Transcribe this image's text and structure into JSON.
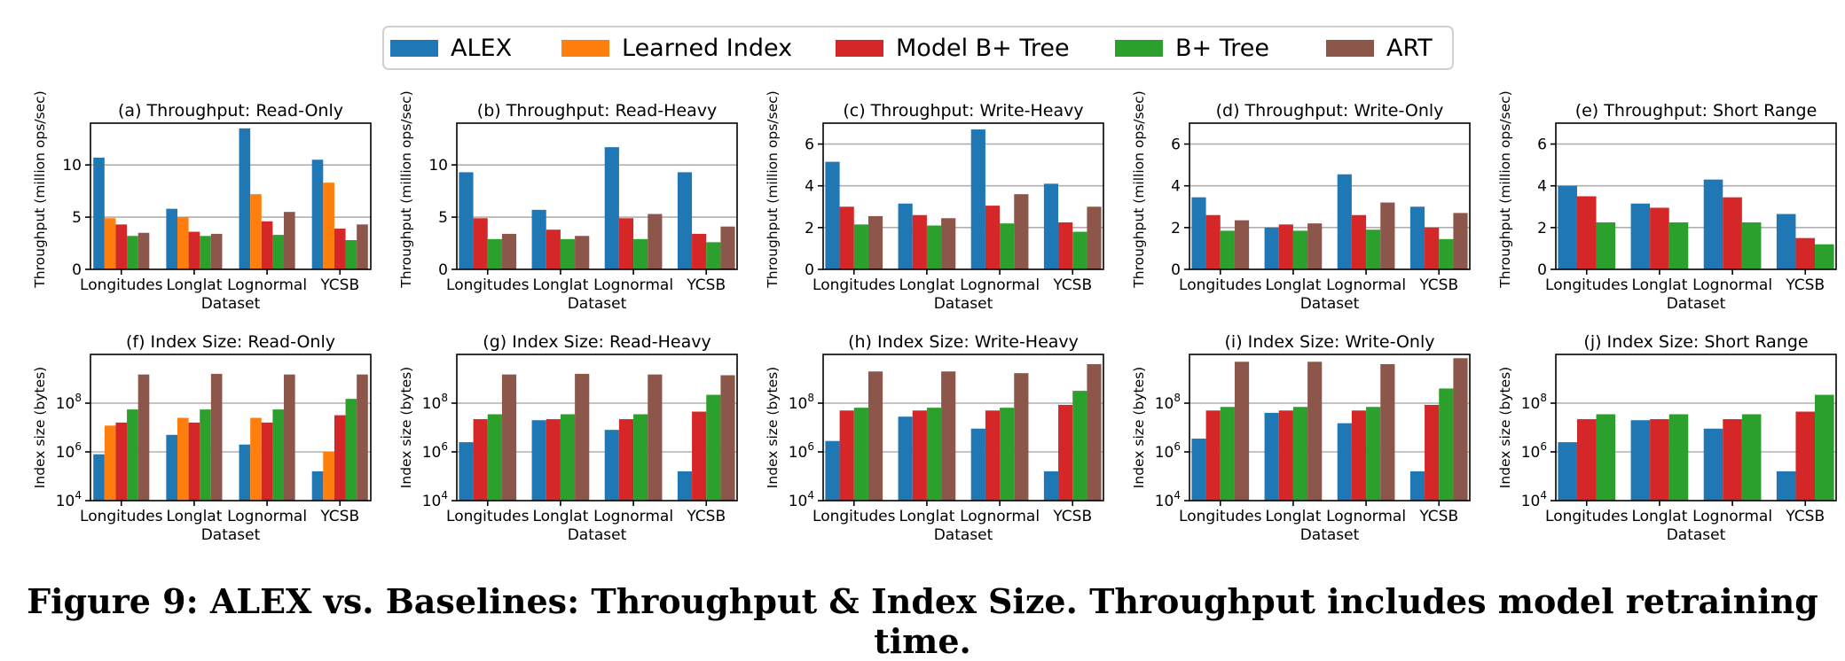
{
  "legend": {
    "items": [
      {
        "label": "ALEX",
        "color": "#1f77b4"
      },
      {
        "label": "Learned Index",
        "color": "#ff7f0e"
      },
      {
        "label": "Model B+ Tree",
        "color": "#d62728"
      },
      {
        "label": "B+ Tree",
        "color": "#2ca02c"
      },
      {
        "label": "ART",
        "color": "#8c564b"
      }
    ]
  },
  "caption": "Figure 9: ALEX vs. Baselines: Throughput & Index Size. Throughput includes model retraining time.",
  "chart_data": [
    {
      "type": "bar",
      "title": "(a) Throughput: Read-Only",
      "xlabel": "Dataset",
      "ylabel": "Throughput (million ops/sec)",
      "categories": [
        "Longitudes",
        "Longlat",
        "Lognormal",
        "YCSB"
      ],
      "ylim": [
        0,
        14
      ],
      "yticks": [
        0,
        5,
        10
      ],
      "yticklabels": [
        "0",
        "5",
        "10"
      ],
      "grid": true,
      "log": false,
      "series": [
        {
          "name": "ALEX",
          "values": [
            10.7,
            5.8,
            13.5,
            10.5
          ]
        },
        {
          "name": "Learned Index",
          "values": [
            4.9,
            5.0,
            7.2,
            8.3
          ]
        },
        {
          "name": "Model B+ Tree",
          "values": [
            4.3,
            3.6,
            4.6,
            3.9
          ]
        },
        {
          "name": "B+ Tree",
          "values": [
            3.2,
            3.2,
            3.3,
            2.8
          ]
        },
        {
          "name": "ART",
          "values": [
            3.5,
            3.4,
            5.5,
            4.3
          ]
        }
      ]
    },
    {
      "type": "bar",
      "title": "(b) Throughput: Read-Heavy",
      "xlabel": "Dataset",
      "ylabel": "Throughput (million ops/sec)",
      "categories": [
        "Longitudes",
        "Longlat",
        "Lognormal",
        "YCSB"
      ],
      "ylim": [
        0,
        14
      ],
      "yticks": [
        0,
        5,
        10
      ],
      "yticklabels": [
        "0",
        "5",
        "10"
      ],
      "grid": true,
      "log": false,
      "series": [
        {
          "name": "ALEX",
          "values": [
            9.3,
            5.7,
            11.7,
            9.3
          ]
        },
        {
          "name": "Model B+ Tree",
          "values": [
            4.9,
            3.8,
            4.9,
            3.4
          ]
        },
        {
          "name": "B+ Tree",
          "values": [
            2.9,
            2.9,
            2.9,
            2.6
          ]
        },
        {
          "name": "ART",
          "values": [
            3.4,
            3.2,
            5.3,
            4.1
          ]
        }
      ]
    },
    {
      "type": "bar",
      "title": "(c) Throughput: Write-Heavy",
      "xlabel": "Dataset",
      "ylabel": "Throughput (million ops/sec)",
      "categories": [
        "Longitudes",
        "Longlat",
        "Lognormal",
        "YCSB"
      ],
      "ylim": [
        0,
        7
      ],
      "yticks": [
        0,
        2,
        4,
        6
      ],
      "yticklabels": [
        "0",
        "2",
        "4",
        "6"
      ],
      "grid": true,
      "log": false,
      "series": [
        {
          "name": "ALEX",
          "values": [
            5.15,
            3.15,
            6.7,
            4.1
          ]
        },
        {
          "name": "Model B+ Tree",
          "values": [
            3.0,
            2.6,
            3.05,
            2.25
          ]
        },
        {
          "name": "B+ Tree",
          "values": [
            2.15,
            2.1,
            2.2,
            1.8
          ]
        },
        {
          "name": "ART",
          "values": [
            2.55,
            2.45,
            3.6,
            3.0
          ]
        }
      ]
    },
    {
      "type": "bar",
      "title": "(d) Throughput: Write-Only",
      "xlabel": "Dataset",
      "ylabel": "Throughput (million ops/sec)",
      "categories": [
        "Longitudes",
        "Longlat",
        "Lognormal",
        "YCSB"
      ],
      "ylim": [
        0,
        7
      ],
      "yticks": [
        0,
        2,
        4,
        6
      ],
      "yticklabels": [
        "0",
        "2",
        "4",
        "6"
      ],
      "grid": true,
      "log": false,
      "series": [
        {
          "name": "ALEX",
          "values": [
            3.45,
            2.0,
            4.55,
            3.0
          ]
        },
        {
          "name": "Model B+ Tree",
          "values": [
            2.6,
            2.15,
            2.6,
            2.0
          ]
        },
        {
          "name": "B+ Tree",
          "values": [
            1.85,
            1.85,
            1.9,
            1.45
          ]
        },
        {
          "name": "ART",
          "values": [
            2.35,
            2.2,
            3.2,
            2.7
          ]
        }
      ]
    },
    {
      "type": "bar",
      "title": "(e) Throughput: Short Range",
      "xlabel": "Dataset",
      "ylabel": "Throughput (million ops/sec)",
      "categories": [
        "Longitudes",
        "Longlat",
        "Lognormal",
        "YCSB"
      ],
      "ylim": [
        0,
        7
      ],
      "yticks": [
        0,
        2,
        4,
        6
      ],
      "yticklabels": [
        "0",
        "2",
        "4",
        "6"
      ],
      "grid": true,
      "log": false,
      "series": [
        {
          "name": "ALEX",
          "values": [
            4.0,
            3.15,
            4.3,
            2.65
          ]
        },
        {
          "name": "Model B+ Tree",
          "values": [
            3.5,
            2.95,
            3.45,
            1.5
          ]
        },
        {
          "name": "B+ Tree",
          "values": [
            2.25,
            2.25,
            2.25,
            1.2
          ]
        }
      ]
    },
    {
      "type": "bar",
      "title": "(f) Index Size: Read-Only",
      "xlabel": "Dataset",
      "ylabel": "Index size (bytes)",
      "categories": [
        "Longitudes",
        "Longlat",
        "Lognormal",
        "YCSB"
      ],
      "ylim": [
        10000,
        10000000000
      ],
      "yticks": [
        10000,
        1000000,
        100000000
      ],
      "yticklabels": [
        "10^4",
        "10^6",
        "10^8"
      ],
      "grid": true,
      "log": true,
      "series": [
        {
          "name": "ALEX",
          "values": [
            800000,
            5000000,
            2000000,
            160000
          ]
        },
        {
          "name": "Learned Index",
          "values": [
            12000000,
            25000000,
            25000000,
            1000000
          ]
        },
        {
          "name": "Model B+ Tree",
          "values": [
            16000000,
            16000000,
            16000000,
            32000000
          ]
        },
        {
          "name": "B+ Tree",
          "values": [
            55000000,
            55000000,
            55000000,
            150000000
          ]
        },
        {
          "name": "ART",
          "values": [
            1500000000,
            1600000000,
            1500000000,
            1500000000
          ]
        }
      ]
    },
    {
      "type": "bar",
      "title": "(g) Index Size: Read-Heavy",
      "xlabel": "Dataset",
      "ylabel": "Index size (bytes)",
      "categories": [
        "Longitudes",
        "Longlat",
        "Lognormal",
        "YCSB"
      ],
      "ylim": [
        10000,
        10000000000
      ],
      "yticks": [
        10000,
        1000000,
        100000000
      ],
      "yticklabels": [
        "10^4",
        "10^6",
        "10^8"
      ],
      "grid": true,
      "log": true,
      "series": [
        {
          "name": "ALEX",
          "values": [
            2500000,
            20000000,
            8000000,
            160000
          ]
        },
        {
          "name": "Model B+ Tree",
          "values": [
            22000000,
            22000000,
            22000000,
            45000000
          ]
        },
        {
          "name": "B+ Tree",
          "values": [
            35000000,
            35000000,
            35000000,
            220000000
          ]
        },
        {
          "name": "ART",
          "values": [
            1500000000,
            1600000000,
            1500000000,
            1400000000
          ]
        }
      ]
    },
    {
      "type": "bar",
      "title": "(h) Index Size: Write-Heavy",
      "xlabel": "Dataset",
      "ylabel": "Index size (bytes)",
      "categories": [
        "Longitudes",
        "Longlat",
        "Lognormal",
        "YCSB"
      ],
      "ylim": [
        10000,
        10000000000
      ],
      "yticks": [
        10000,
        1000000,
        100000000
      ],
      "yticklabels": [
        "10^4",
        "10^6",
        "10^8"
      ],
      "grid": true,
      "log": true,
      "series": [
        {
          "name": "ALEX",
          "values": [
            2800000,
            28000000,
            9000000,
            160000
          ]
        },
        {
          "name": "Model B+ Tree",
          "values": [
            50000000,
            50000000,
            50000000,
            85000000
          ]
        },
        {
          "name": "B+ Tree",
          "values": [
            65000000,
            65000000,
            65000000,
            320000000
          ]
        },
        {
          "name": "ART",
          "values": [
            2000000000,
            2000000000,
            1700000000,
            4000000000
          ]
        }
      ]
    },
    {
      "type": "bar",
      "title": "(i) Index Size: Write-Only",
      "xlabel": "Dataset",
      "ylabel": "Index size (bytes)",
      "categories": [
        "Longitudes",
        "Longlat",
        "Lognormal",
        "YCSB"
      ],
      "ylim": [
        10000,
        10000000000
      ],
      "yticks": [
        10000,
        1000000,
        100000000
      ],
      "yticklabels": [
        "10^4",
        "10^6",
        "10^8"
      ],
      "grid": true,
      "log": true,
      "series": [
        {
          "name": "ALEX",
          "values": [
            3500000,
            40000000,
            15000000,
            160000
          ]
        },
        {
          "name": "Model B+ Tree",
          "values": [
            50000000,
            50000000,
            50000000,
            85000000
          ]
        },
        {
          "name": "B+ Tree",
          "values": [
            70000000,
            70000000,
            70000000,
            400000000
          ]
        },
        {
          "name": "ART",
          "values": [
            5000000000,
            5000000000,
            4000000000,
            7000000000
          ]
        }
      ]
    },
    {
      "type": "bar",
      "title": "(j) Index Size: Short Range",
      "xlabel": "Dataset",
      "ylabel": "Index size (bytes)",
      "categories": [
        "Longitudes",
        "Longlat",
        "Lognormal",
        "YCSB"
      ],
      "ylim": [
        10000,
        10000000000
      ],
      "yticks": [
        10000,
        1000000,
        100000000
      ],
      "yticklabels": [
        "10^4",
        "10^6",
        "10^8"
      ],
      "grid": true,
      "log": true,
      "series": [
        {
          "name": "ALEX",
          "values": [
            2500000,
            20000000,
            9000000,
            160000
          ]
        },
        {
          "name": "Model B+ Tree",
          "values": [
            22000000,
            22000000,
            22000000,
            45000000
          ]
        },
        {
          "name": "B+ Tree",
          "values": [
            35000000,
            35000000,
            35000000,
            220000000
          ]
        }
      ]
    }
  ]
}
